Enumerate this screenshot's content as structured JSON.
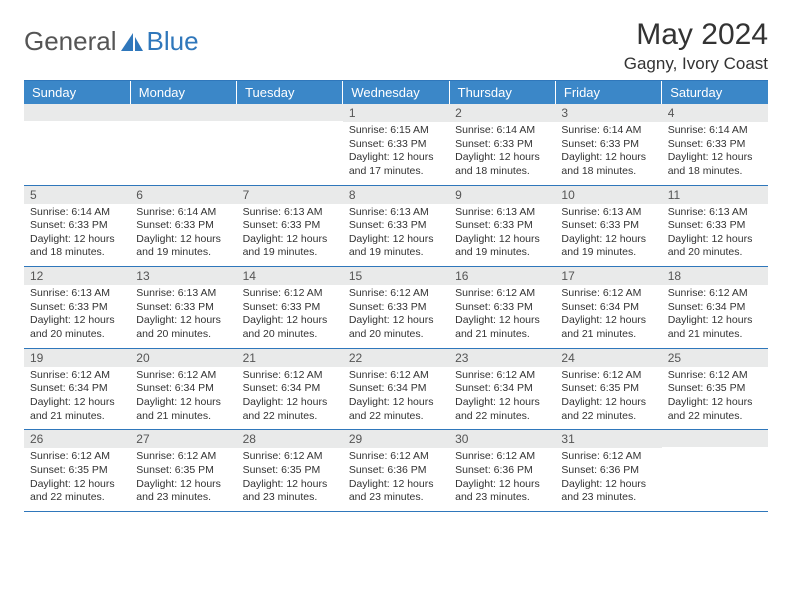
{
  "brand": {
    "general": "General",
    "blue": "Blue"
  },
  "title": "May 2024",
  "location": "Gagny, Ivory Coast",
  "colors": {
    "header_bg": "#3b87c8",
    "header_text": "#ffffff",
    "rule": "#2f77bb",
    "daynum_bg": "#e9eaea",
    "text": "#333333",
    "logo_blue": "#2f77bb"
  },
  "weekdays": [
    "Sunday",
    "Monday",
    "Tuesday",
    "Wednesday",
    "Thursday",
    "Friday",
    "Saturday"
  ],
  "weeks": [
    [
      null,
      null,
      null,
      {
        "n": "1",
        "sr": "6:15 AM",
        "ss": "6:33 PM",
        "dl": "12 hours and 17 minutes."
      },
      {
        "n": "2",
        "sr": "6:14 AM",
        "ss": "6:33 PM",
        "dl": "12 hours and 18 minutes."
      },
      {
        "n": "3",
        "sr": "6:14 AM",
        "ss": "6:33 PM",
        "dl": "12 hours and 18 minutes."
      },
      {
        "n": "4",
        "sr": "6:14 AM",
        "ss": "6:33 PM",
        "dl": "12 hours and 18 minutes."
      }
    ],
    [
      {
        "n": "5",
        "sr": "6:14 AM",
        "ss": "6:33 PM",
        "dl": "12 hours and 18 minutes."
      },
      {
        "n": "6",
        "sr": "6:14 AM",
        "ss": "6:33 PM",
        "dl": "12 hours and 19 minutes."
      },
      {
        "n": "7",
        "sr": "6:13 AM",
        "ss": "6:33 PM",
        "dl": "12 hours and 19 minutes."
      },
      {
        "n": "8",
        "sr": "6:13 AM",
        "ss": "6:33 PM",
        "dl": "12 hours and 19 minutes."
      },
      {
        "n": "9",
        "sr": "6:13 AM",
        "ss": "6:33 PM",
        "dl": "12 hours and 19 minutes."
      },
      {
        "n": "10",
        "sr": "6:13 AM",
        "ss": "6:33 PM",
        "dl": "12 hours and 19 minutes."
      },
      {
        "n": "11",
        "sr": "6:13 AM",
        "ss": "6:33 PM",
        "dl": "12 hours and 20 minutes."
      }
    ],
    [
      {
        "n": "12",
        "sr": "6:13 AM",
        "ss": "6:33 PM",
        "dl": "12 hours and 20 minutes."
      },
      {
        "n": "13",
        "sr": "6:13 AM",
        "ss": "6:33 PM",
        "dl": "12 hours and 20 minutes."
      },
      {
        "n": "14",
        "sr": "6:12 AM",
        "ss": "6:33 PM",
        "dl": "12 hours and 20 minutes."
      },
      {
        "n": "15",
        "sr": "6:12 AM",
        "ss": "6:33 PM",
        "dl": "12 hours and 20 minutes."
      },
      {
        "n": "16",
        "sr": "6:12 AM",
        "ss": "6:33 PM",
        "dl": "12 hours and 21 minutes."
      },
      {
        "n": "17",
        "sr": "6:12 AM",
        "ss": "6:34 PM",
        "dl": "12 hours and 21 minutes."
      },
      {
        "n": "18",
        "sr": "6:12 AM",
        "ss": "6:34 PM",
        "dl": "12 hours and 21 minutes."
      }
    ],
    [
      {
        "n": "19",
        "sr": "6:12 AM",
        "ss": "6:34 PM",
        "dl": "12 hours and 21 minutes."
      },
      {
        "n": "20",
        "sr": "6:12 AM",
        "ss": "6:34 PM",
        "dl": "12 hours and 21 minutes."
      },
      {
        "n": "21",
        "sr": "6:12 AM",
        "ss": "6:34 PM",
        "dl": "12 hours and 22 minutes."
      },
      {
        "n": "22",
        "sr": "6:12 AM",
        "ss": "6:34 PM",
        "dl": "12 hours and 22 minutes."
      },
      {
        "n": "23",
        "sr": "6:12 AM",
        "ss": "6:34 PM",
        "dl": "12 hours and 22 minutes."
      },
      {
        "n": "24",
        "sr": "6:12 AM",
        "ss": "6:35 PM",
        "dl": "12 hours and 22 minutes."
      },
      {
        "n": "25",
        "sr": "6:12 AM",
        "ss": "6:35 PM",
        "dl": "12 hours and 22 minutes."
      }
    ],
    [
      {
        "n": "26",
        "sr": "6:12 AM",
        "ss": "6:35 PM",
        "dl": "12 hours and 22 minutes."
      },
      {
        "n": "27",
        "sr": "6:12 AM",
        "ss": "6:35 PM",
        "dl": "12 hours and 23 minutes."
      },
      {
        "n": "28",
        "sr": "6:12 AM",
        "ss": "6:35 PM",
        "dl": "12 hours and 23 minutes."
      },
      {
        "n": "29",
        "sr": "6:12 AM",
        "ss": "6:36 PM",
        "dl": "12 hours and 23 minutes."
      },
      {
        "n": "30",
        "sr": "6:12 AM",
        "ss": "6:36 PM",
        "dl": "12 hours and 23 minutes."
      },
      {
        "n": "31",
        "sr": "6:12 AM",
        "ss": "6:36 PM",
        "dl": "12 hours and 23 minutes."
      },
      null
    ]
  ],
  "labels": {
    "sunrise": "Sunrise:",
    "sunset": "Sunset:",
    "daylight": "Daylight:"
  }
}
